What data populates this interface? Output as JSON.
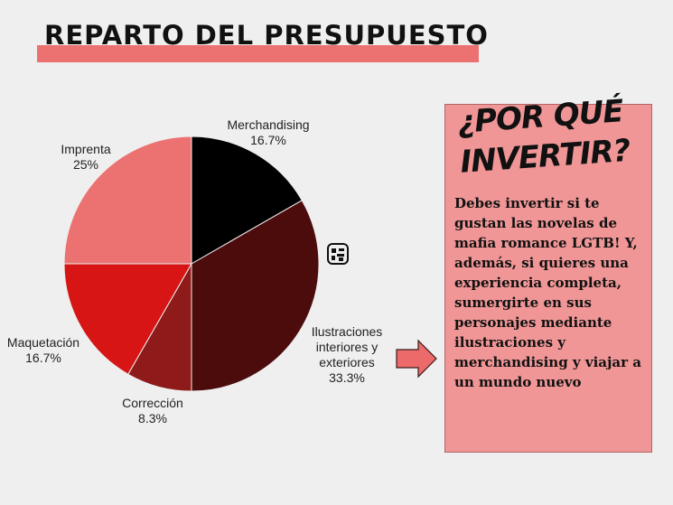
{
  "title": "REPARTO DEL PRESUPUESTO",
  "panel": {
    "title": "¿POR QUÉ INVERTIR?",
    "text": "Debes invertir si te gustan las novelas de mafia romance LGTB! Y, además, si quieres una experiencia completa, sumergirte en sus personajes mediante ilustraciones y merchandising y viajar a un mundo nuevo"
  },
  "icons": {
    "arrow": "right-arrow-icon",
    "robot": "robot-face-icon"
  },
  "chart_data": {
    "type": "pie",
    "slices": [
      {
        "name": "Merchandising",
        "value": 16.7,
        "label": "16.7%",
        "color": "#000000"
      },
      {
        "name": "Ilustraciones interiores y exteriores",
        "value": 33.3,
        "label": "33.3%",
        "color": "#4d0c0c"
      },
      {
        "name": "Corrección",
        "value": 8.3,
        "label": "8.3%",
        "color": "#8e1a1a"
      },
      {
        "name": "Maquetación",
        "value": 16.7,
        "label": "16.7%",
        "color": "#d71515"
      },
      {
        "name": "Imprenta",
        "value": 25,
        "label": "25%",
        "color": "#ec7272"
      }
    ]
  }
}
